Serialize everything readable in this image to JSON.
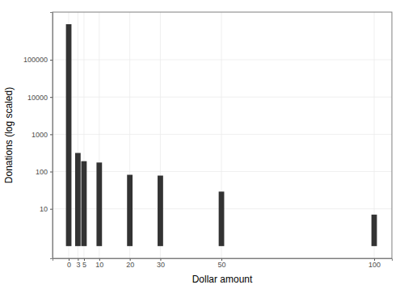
{
  "chart_data": {
    "type": "bar",
    "x_label": "Dollar amount",
    "y_label": "Donations (log scaled)",
    "x": [
      0,
      3,
      5,
      10,
      20,
      30,
      50,
      100
    ],
    "values": [
      900000,
      316,
      190,
      175,
      82,
      78,
      29,
      7
    ],
    "color": "#333333",
    "xlim": [
      -5.3,
      105.8
    ],
    "xticks": [
      0,
      3,
      5,
      10,
      20,
      30,
      50,
      100
    ],
    "ylim": [
      0.47,
      1900000
    ],
    "yticks": [
      10,
      100,
      1000,
      10000,
      100000
    ],
    "log": "y",
    "grid": true
  }
}
